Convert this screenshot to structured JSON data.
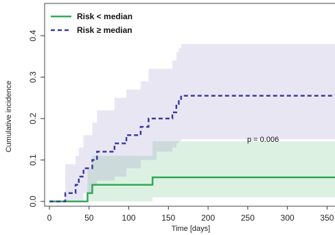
{
  "chart_data": {
    "type": "line",
    "title": "",
    "xlabel": "Time [days]",
    "ylabel": "Cumulative incidence",
    "xlim": [
      0,
      360
    ],
    "ylim": [
      0,
      0.42
    ],
    "x_ticks": [
      0,
      50,
      100,
      150,
      200,
      250,
      300,
      350
    ],
    "x_tick_labels": [
      "0",
      "50",
      "100",
      "150",
      "200",
      "250",
      "300",
      "350"
    ],
    "y_ticks": [
      0.0,
      0.1,
      0.2,
      0.3,
      0.4
    ],
    "y_tick_labels": [
      "0.0",
      "0.1",
      "0.2",
      "0.3",
      "0.4"
    ],
    "grid": false,
    "legend_position": "top-left",
    "annotation": "p = 0.006",
    "series": [
      {
        "name": "Risk < median",
        "style": "solid",
        "color": "#2eaa55",
        "band_color": "#2eaa55",
        "x": [
          0,
          48,
          54,
          130,
          360
        ],
        "y": [
          0,
          0.02,
          0.04,
          0.058,
          0.058
        ],
        "ci_lower": [
          0,
          0.0,
          0.0,
          0.01,
          0.01
        ],
        "ci_upper": [
          0,
          0.08,
          0.11,
          0.145,
          0.145
        ]
      },
      {
        "name": "Risk ≥ median",
        "style": "dashed",
        "color": "#3a3aa0",
        "band_color": "#7a6bc0",
        "x": [
          0,
          20,
          33,
          37,
          43,
          54,
          60,
          82,
          97,
          102,
          115,
          125,
          135,
          155,
          160,
          163,
          166,
          360
        ],
        "y": [
          0,
          0.02,
          0.04,
          0.06,
          0.08,
          0.1,
          0.12,
          0.14,
          0.16,
          0.16,
          0.18,
          0.2,
          0.2,
          0.215,
          0.235,
          0.245,
          0.255,
          0.255
        ],
        "ci_lower": [
          0,
          0.0,
          0.0,
          0.0,
          0.02,
          0.04,
          0.05,
          0.06,
          0.08,
          0.08,
          0.1,
          0.1,
          0.12,
          0.13,
          0.14,
          0.145,
          0.15,
          0.15
        ],
        "ci_upper": [
          0,
          0.09,
          0.11,
          0.13,
          0.16,
          0.19,
          0.22,
          0.25,
          0.27,
          0.27,
          0.29,
          0.32,
          0.32,
          0.34,
          0.36,
          0.37,
          0.38,
          0.38
        ]
      }
    ]
  }
}
